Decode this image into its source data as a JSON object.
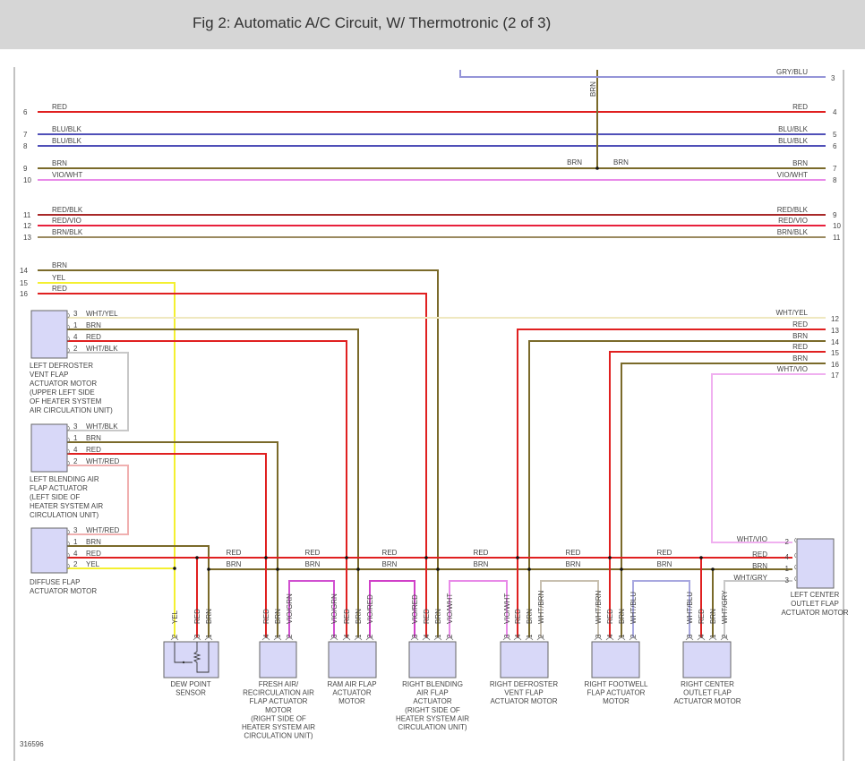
{
  "header": {
    "title": "Fig 2: Automatic A/C Circuit, W/ Thermotronic (2 of 3)"
  },
  "wire_colors": {
    "RED": "#e02020",
    "BRN": "#7a6a2a",
    "YEL": "#f4f030",
    "BLU/BLK": "#5050b8",
    "VIO/WHT": "#e88ae8",
    "RED/BLK": "#a82828",
    "RED/VIO": "#e8203c",
    "BRN/BLK": "#9a8a60",
    "GRY/BLU": "#9494d8",
    "WHT/YEL": "#efe8c0",
    "WHT/BLK": "#c8c8c8",
    "WHT/RED": "#f0b0b0",
    "VIO/GRN": "#d050d0",
    "VIO/RED": "#d040c8",
    "WHT/BRN": "#c8c0b0",
    "WHT/BLU": "#a8a8e0",
    "WHT/GRY": "#c8c8c8",
    "WHT/VIO": "#f0b0f0"
  },
  "harness": {
    "through": [
      {
        "l": "6",
        "r": "4",
        "wire": "RED"
      },
      {
        "l": "7",
        "r": "5",
        "wire": "BLU/BLK"
      },
      {
        "l": "8",
        "r": "6",
        "wire": "BLU/BLK"
      },
      {
        "l": "9",
        "r": "7",
        "wire": "BRN"
      },
      {
        "l": "10",
        "r": "8",
        "wire": "VIO/WHT"
      },
      {
        "l": "11",
        "r": "9",
        "wire": "RED/BLK"
      },
      {
        "l": "12",
        "r": "10",
        "wire": "RED/VIO"
      },
      {
        "l": "13",
        "r": "11",
        "wire": "BRN/BLK"
      }
    ],
    "left_only": [
      {
        "l": "14",
        "wire": "BRN"
      },
      {
        "l": "15",
        "wire": "YEL"
      },
      {
        "l": "16",
        "wire": "RED"
      }
    ],
    "right_only": [
      {
        "r": "3",
        "wire": "GRY/BLU"
      },
      {
        "r": "12",
        "wire": "WHT/YEL"
      },
      {
        "r": "13",
        "wire": "RED"
      },
      {
        "r": "14",
        "wire": "BRN"
      },
      {
        "r": "15",
        "wire": "RED"
      },
      {
        "r": "16",
        "wire": "BRN"
      },
      {
        "r": "17",
        "wire": "WHT/VIO"
      }
    ]
  },
  "brn_branch": {
    "vertical_label": "BRN",
    "left_label": "BRN",
    "right_label": "BRN"
  },
  "bus": {
    "red": "RED",
    "brn": "BRN"
  },
  "left_components": [
    {
      "name": [
        "LEFT DEFROSTER",
        "VENT FLAP",
        "ACTUATOR MOTOR",
        "(UPPER LEFT SIDE",
        "OF HEATER SYSTEM",
        "AIR CIRCULATION UNIT)"
      ],
      "pins": [
        {
          "pin": "3",
          "wire": "WHT/YEL"
        },
        {
          "pin": "1",
          "wire": "BRN"
        },
        {
          "pin": "4",
          "wire": "RED"
        },
        {
          "pin": "2",
          "wire": "WHT/BLK"
        }
      ]
    },
    {
      "name": [
        "LEFT BLENDING AIR",
        "FLAP ACTUATOR",
        "(LEFT SIDE OF",
        "HEATER SYSTEM AIR",
        "CIRCULATION UNIT)"
      ],
      "pins": [
        {
          "pin": "3",
          "wire": "WHT/BLK"
        },
        {
          "pin": "1",
          "wire": "BRN"
        },
        {
          "pin": "4",
          "wire": "RED"
        },
        {
          "pin": "2",
          "wire": "WHT/RED"
        }
      ]
    },
    {
      "name": [
        "DIFFUSE FLAP",
        "ACTUATOR MOTOR"
      ],
      "pins": [
        {
          "pin": "3",
          "wire": "WHT/RED"
        },
        {
          "pin": "1",
          "wire": "BRN"
        },
        {
          "pin": "4",
          "wire": "RED"
        },
        {
          "pin": "2",
          "wire": "YEL"
        }
      ]
    }
  ],
  "bottom_components": [
    {
      "name": [
        "DEW POINT",
        "SENSOR"
      ],
      "pins": [
        {
          "pin": "2",
          "wire": "YEL"
        },
        {
          "pin": "3",
          "wire": "RED"
        },
        {
          "pin": "1",
          "wire": "BRN"
        }
      ]
    },
    {
      "name": [
        "FRESH AIR/",
        "RECIRCULATION AIR",
        "FLAP ACTUATOR",
        "MOTOR",
        "(RIGHT SIDE OF",
        "HEATER SYSTEM AIR",
        "CIRCULATION UNIT)"
      ],
      "pins": [
        {
          "pin": "4",
          "wire": "RED"
        },
        {
          "pin": "1",
          "wire": "BRN"
        },
        {
          "pin": "2",
          "wire": "VIO/GRN"
        }
      ]
    },
    {
      "name": [
        "RAM AIR FLAP",
        "ACTUATOR",
        "MOTOR"
      ],
      "pins": [
        {
          "pin": "3",
          "wire": "VIO/GRN"
        },
        {
          "pin": "4",
          "wire": "RED"
        },
        {
          "pin": "1",
          "wire": "BRN"
        },
        {
          "pin": "2",
          "wire": "VIO/RED"
        }
      ]
    },
    {
      "name": [
        "RIGHT BLENDING",
        "AIR FLAP",
        "ACTUATOR",
        "(RIGHT SIDE OF",
        "HEATER SYSTEM AIR",
        "CIRCULATION UNIT)"
      ],
      "pins": [
        {
          "pin": "3",
          "wire": "VIO/RED"
        },
        {
          "pin": "4",
          "wire": "RED"
        },
        {
          "pin": "1",
          "wire": "BRN"
        },
        {
          "pin": "2",
          "wire": "VIO/WHT"
        }
      ]
    },
    {
      "name": [
        "RIGHT DEFROSTER",
        "VENT FLAP",
        "ACTUATOR MOTOR"
      ],
      "pins": [
        {
          "pin": "3",
          "wire": "VIO/WHT"
        },
        {
          "pin": "4",
          "wire": "RED"
        },
        {
          "pin": "1",
          "wire": "BRN"
        },
        {
          "pin": "2",
          "wire": "WHT/BRN"
        }
      ]
    },
    {
      "name": [
        "RIGHT FOOTWELL",
        "FLAP ACTUATOR",
        "MOTOR"
      ],
      "pins": [
        {
          "pin": "3",
          "wire": "WHT/BRN"
        },
        {
          "pin": "4",
          "wire": "RED"
        },
        {
          "pin": "1",
          "wire": "BRN"
        },
        {
          "pin": "2",
          "wire": "WHT/BLU"
        }
      ]
    },
    {
      "name": [
        "RIGHT CENTER",
        "OUTLET FLAP",
        "ACTUATOR MOTOR"
      ],
      "pins": [
        {
          "pin": "3",
          "wire": "WHT/BLU"
        },
        {
          "pin": "4",
          "wire": "RED"
        },
        {
          "pin": "1",
          "wire": "BRN"
        },
        {
          "pin": "2",
          "wire": "WHT/GRY"
        }
      ]
    }
  ],
  "right_component": {
    "name": [
      "LEFT CENTER",
      "OUTLET FLAP",
      "ACTUATOR MOTOR"
    ],
    "pins": [
      {
        "pin": "2",
        "wire": "WHT/VIO"
      },
      {
        "pin": "4",
        "wire": "RED"
      },
      {
        "pin": "1",
        "wire": "BRN"
      },
      {
        "pin": "3",
        "wire": "WHT/GRY"
      }
    ]
  },
  "figure_number": "316596"
}
